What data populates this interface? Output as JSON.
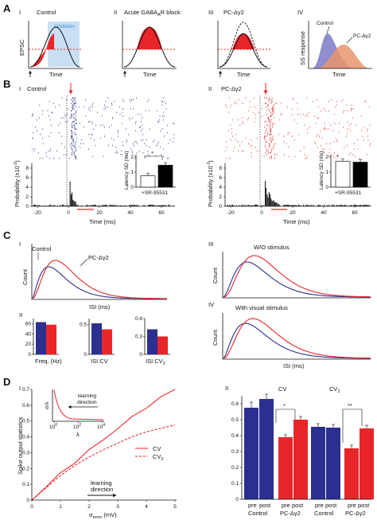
{
  "panelA": {
    "letter": "A",
    "sub1": "I",
    "title1": "Control",
    "sub2": "II",
    "title2": "Acute GABA",
    "title2_sub": "A",
    "title2_end": "R block",
    "sub3": "III",
    "title3": "PC-Δγ2",
    "sub4": "IV",
    "inhibition": "Inhibition",
    "ylabel_epsc": "EPSC",
    "xlabel": "Time",
    "ylabel_ss": "SS response",
    "legend_control": "Control",
    "legend_pc": "PC-Δγ2"
  },
  "panelB": {
    "letter": "B",
    "sub1": "I",
    "cond1": "Control",
    "sub2": "II",
    "cond2": "PC-Δγ2",
    "ylabel": "Probability (x10",
    "ylabel_exp": "-2",
    "ylabel_end": ")",
    "xlabel": "Time (ms)",
    "xticks": [
      "-20",
      "0",
      "20",
      "40",
      "60"
    ],
    "yticks": [
      "0",
      "2",
      "4",
      "6",
      "8"
    ],
    "inset_ylabel": "Latency SD (ms)",
    "inset_yticks": [
      "0",
      "1",
      "2"
    ],
    "inset_xlabel": "+SR-95531",
    "sig": "*"
  },
  "panelC": {
    "letter": "C",
    "sub1": "I",
    "legend_control": "Control",
    "legend_pc": "PC-Δγ2",
    "count": "Count",
    "isi": "ISI (ms)",
    "sub2": "II",
    "bar_labels": [
      "Freq. (Hz)",
      "ISI CV",
      "ISI CV"
    ],
    "bar_label3_sub": "2",
    "freq_yticks": [
      "0",
      "20",
      "40",
      "60"
    ],
    "cv_yticks": [
      "0",
      "0.5"
    ],
    "cv2_yticks": [
      "0",
      "0.3",
      "0.6"
    ],
    "sub3": "III",
    "title3": "W/O stimulus",
    "sub4": "IV",
    "title4": "With visual stimulus"
  },
  "panelD": {
    "letter": "D",
    "sub1": "I",
    "ylabel": "Spike output statistics",
    "xlabel_sigma": "σ",
    "xlabel_sub": "error",
    "xlabel_unit": " (mV)",
    "xticks": [
      "0",
      "1",
      "2",
      "3",
      "4",
      "5"
    ],
    "yticks": [
      "0",
      "0.1",
      "0.2",
      "0.3",
      "0.4",
      "0.5",
      "0.6",
      "0.7"
    ],
    "legend_cv": "CV",
    "legend_cv2": "CV",
    "legend_cv2_sub": "2",
    "learning1": "learning",
    "learning2": "direction",
    "inset_ylabel": "σ/λ",
    "inset_xlabel": "λ",
    "inset_xticks": [
      "10",
      "10",
      "10"
    ],
    "inset_xticks_exp": [
      "0",
      "2",
      "4"
    ],
    "inset_learning1": "learning",
    "inset_learning2": "direction",
    "sub2": "II",
    "bar_yticks": [
      "0",
      "0.1",
      "0.2",
      "0.3",
      "0.4",
      "0.5",
      "0.6"
    ],
    "group_cv": "CV",
    "group_cv2": "CV",
    "group_cv2_sub": "2",
    "pre": "pre",
    "post": "post",
    "control": "Control",
    "pc": "PC-Δγ2",
    "sig1": "*",
    "sig2": "**"
  },
  "chart_data": [
    {
      "type": "bar",
      "id": "B-inset-control",
      "categories": [
        "",
        "+SR-95531"
      ],
      "values": [
        0.75,
        1.45
      ],
      "ylabel": "Latency SD (ms)",
      "ylim": [
        0,
        2
      ],
      "colors": [
        "#ffffff",
        "#000000"
      ]
    },
    {
      "type": "bar",
      "id": "B-inset-pc",
      "categories": [
        "",
        "+SR-95531"
      ],
      "values": [
        1.7,
        1.65
      ],
      "ylabel": "Latency SD (ms)",
      "ylim": [
        0,
        2
      ],
      "colors": [
        "#ffffff",
        "#000000"
      ]
    },
    {
      "type": "bar",
      "id": "C-II-freq",
      "categories": [
        "Control",
        "PC-Δγ2"
      ],
      "values": [
        63,
        58
      ],
      "ylim": [
        0,
        70
      ],
      "colors": [
        "#2b2f8f",
        "#e8262a"
      ]
    },
    {
      "type": "bar",
      "id": "C-II-cv",
      "categories": [
        "Control",
        "PC-Δγ2"
      ],
      "values": [
        0.52,
        0.42
      ],
      "ylim": [
        0,
        0.6
      ],
      "colors": [
        "#2b2f8f",
        "#e8262a"
      ]
    },
    {
      "type": "bar",
      "id": "C-II-cv2",
      "categories": [
        "Control",
        "PC-Δγ2"
      ],
      "values": [
        0.42,
        0.3
      ],
      "ylim": [
        0,
        0.6
      ],
      "colors": [
        "#2b2f8f",
        "#e8262a"
      ]
    },
    {
      "type": "line",
      "id": "D-I",
      "x": [
        0,
        0.5,
        1,
        1.5,
        2,
        2.5,
        3,
        3.5,
        4,
        4.5,
        5
      ],
      "series": [
        {
          "name": "CV",
          "values": [
            0,
            0.085,
            0.165,
            0.24,
            0.315,
            0.385,
            0.45,
            0.53,
            0.59,
            0.65,
            0.7
          ]
        },
        {
          "name": "CV2",
          "values": [
            0,
            0.08,
            0.155,
            0.22,
            0.275,
            0.32,
            0.36,
            0.4,
            0.43,
            0.455,
            0.475
          ]
        }
      ],
      "ylim": [
        0,
        0.7
      ],
      "xlim": [
        0,
        5
      ]
    },
    {
      "type": "bar",
      "id": "D-II",
      "categories": [
        "pre",
        "post",
        "pre",
        "post",
        "pre",
        "post",
        "pre",
        "post"
      ],
      "values": [
        0.575,
        0.63,
        0.39,
        0.5,
        0.455,
        0.45,
        0.32,
        0.445
      ],
      "errors": [
        0.035,
        0.03,
        0.015,
        0.02,
        0.02,
        0.02,
        0.02,
        0.02
      ],
      "ylim": [
        0,
        0.65
      ],
      "colors": [
        "#2b2f8f",
        "#2b2f8f",
        "#e8262a",
        "#e8262a",
        "#2b2f8f",
        "#2b2f8f",
        "#e8262a",
        "#e8262a"
      ]
    }
  ]
}
